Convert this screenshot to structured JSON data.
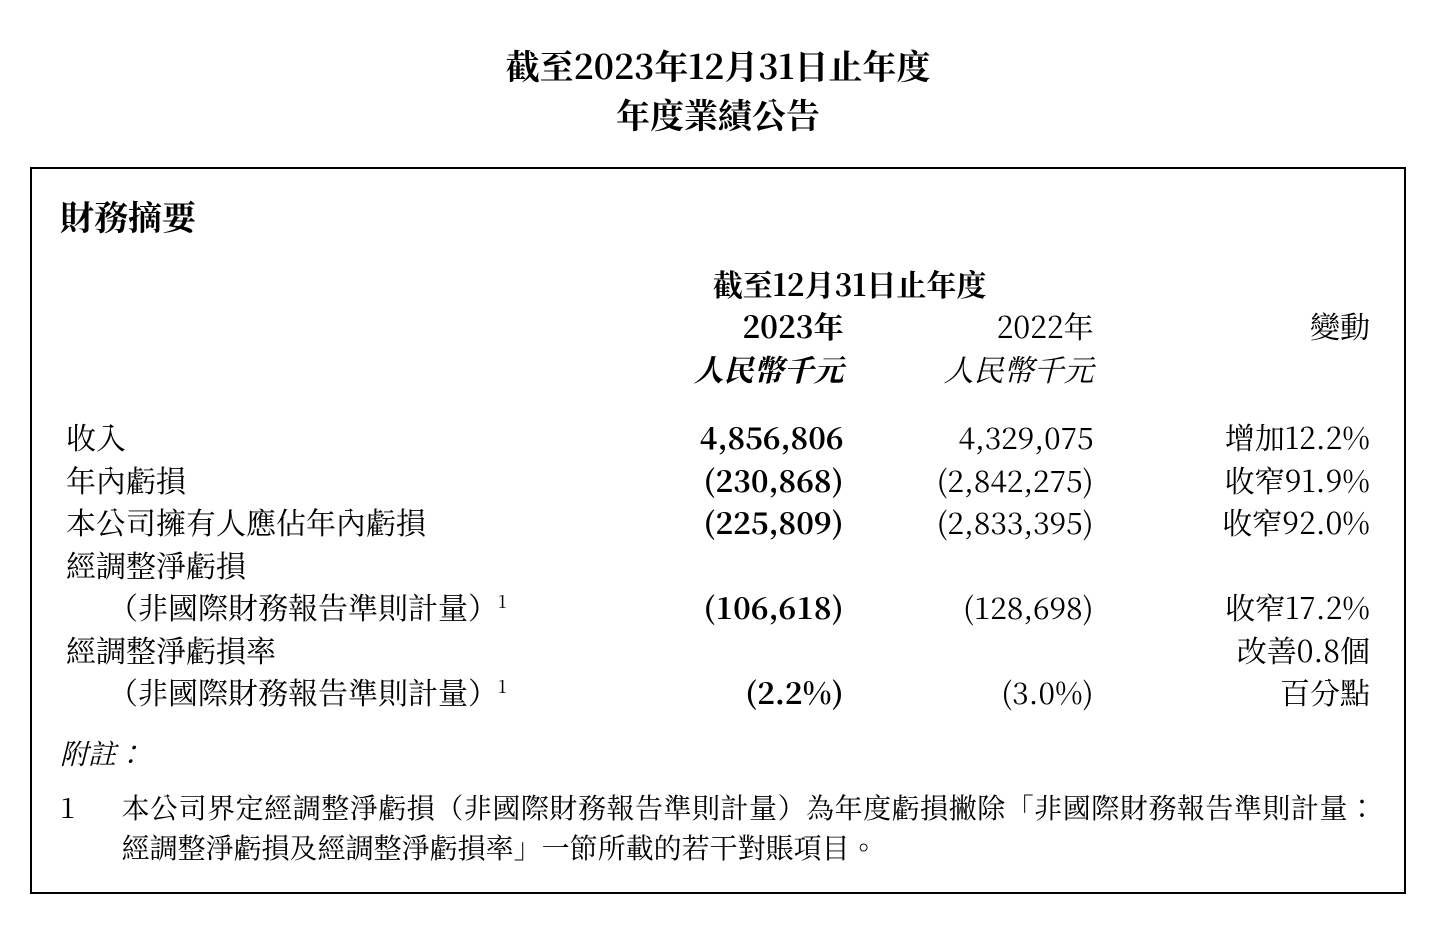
{
  "title": {
    "line1": "截至2023年12月31日止年度",
    "line2": "年度業績公告"
  },
  "summary": {
    "heading": "財務摘要",
    "header": {
      "span_label": "截至12月31日止年度",
      "year_2023": "2023年",
      "year_2022": "2022年",
      "unit_2023": "人民幣千元",
      "unit_2022": "人民幣千元",
      "change_label": "變動"
    },
    "rows": {
      "revenue": {
        "label": "收入",
        "y2023": "4,856,806",
        "y2022": "4,329,075",
        "change": "增加12.2%"
      },
      "loss_year": {
        "label": "年內虧損",
        "y2023": "(230,868)",
        "y2022": "(2,842,275)",
        "change": "收窄91.9%"
      },
      "loss_owners": {
        "label": "本公司擁有人應佔年內虧損",
        "y2023": "(225,809)",
        "y2022": "(2,833,395)",
        "change": "收窄92.0%"
      },
      "adj_net_loss": {
        "label_line1": "經調整淨虧損",
        "label_line2": "（非國際財務報告準則計量）",
        "footnote_mark": "1",
        "y2023": "(106,618)",
        "y2022": "(128,698)",
        "change": "收窄17.2%"
      },
      "adj_net_loss_rate": {
        "label_line1": "經調整淨虧損率",
        "label_line2": "（非國際財務報告準則計量）",
        "footnote_mark": "1",
        "y2023": "(2.2%)",
        "y2022": "(3.0%)",
        "change_line1": "改善0.8個",
        "change_line2": "百分點"
      }
    },
    "notes": {
      "heading": "附註：",
      "items": [
        {
          "num": "1",
          "text": "本公司界定經調整淨虧損（非國際財務報告準則計量）為年度虧損撇除「非國際財務報告準則計量：經調整淨虧損及經調整淨虧損率」一節所載的若干對賬項目。"
        }
      ]
    }
  }
}
